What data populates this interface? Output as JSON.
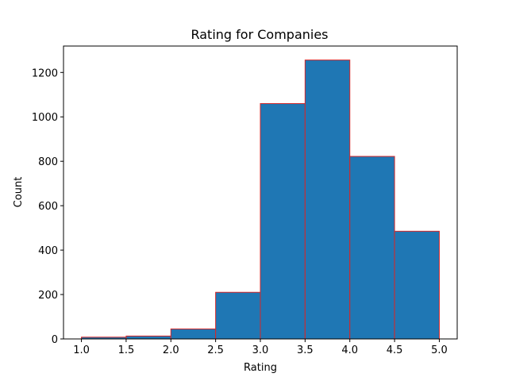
{
  "chart_data": {
    "type": "bar",
    "subtype": "histogram",
    "title": "Rating for Companies",
    "xlabel": "Rating",
    "ylabel": "Count",
    "bin_edges": [
      1.0,
      1.5,
      2.0,
      2.5,
      3.0,
      3.5,
      4.0,
      4.5,
      5.0
    ],
    "values": [
      8,
      13,
      45,
      210,
      1060,
      1256,
      822,
      485
    ],
    "xlim": [
      0.8,
      5.2
    ],
    "ylim": [
      0,
      1319
    ],
    "xticks": [
      "1.0",
      "1.5",
      "2.0",
      "2.5",
      "3.0",
      "3.5",
      "4.0",
      "4.5",
      "5.0"
    ],
    "yticks": [
      "0",
      "200",
      "400",
      "600",
      "800",
      "1000",
      "1200"
    ],
    "grid": false,
    "bar_fill_color": "#1f77b4",
    "bar_edge_color": "#d62728"
  }
}
